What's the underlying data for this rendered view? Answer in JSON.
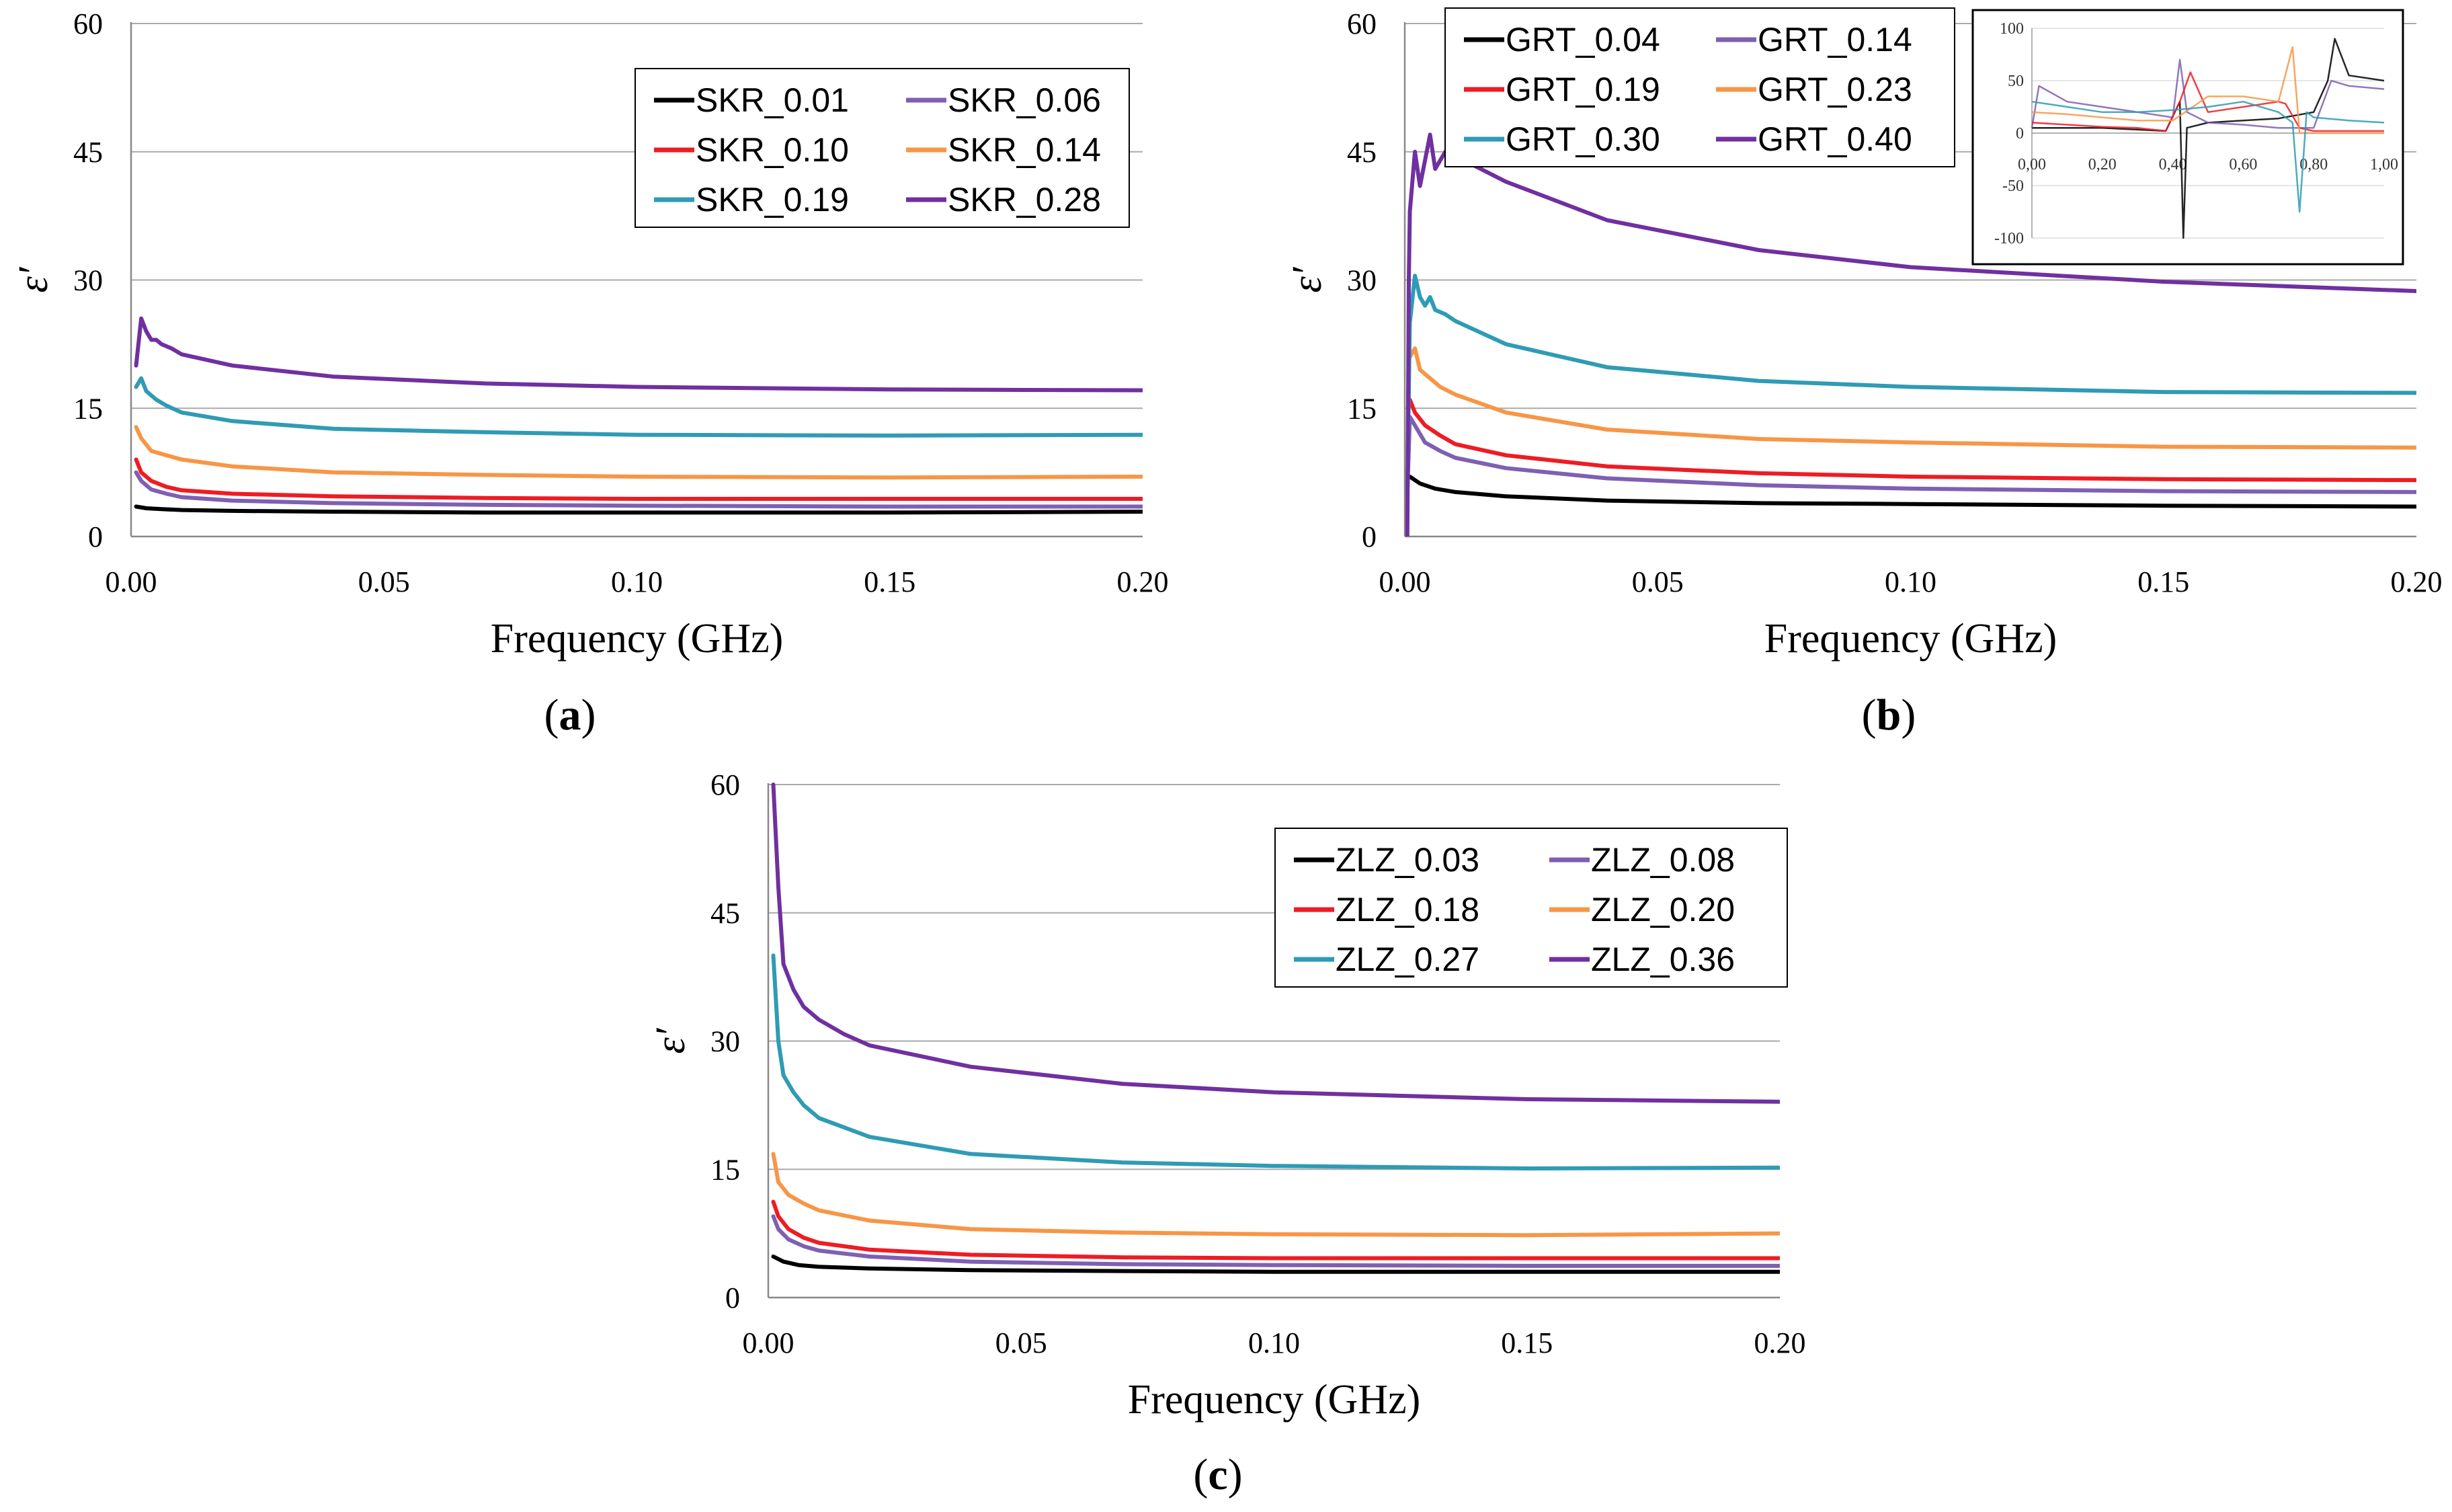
{
  "figure_labels": {
    "a_prefix": "(",
    "a_letter": "a",
    "a_suffix": ")",
    "b_prefix": "(",
    "b_letter": "b",
    "b_suffix": ")",
    "c_prefix": "(",
    "c_letter": "c",
    "c_suffix": ")"
  },
  "colors": {
    "black": "#000000",
    "purple_light": "#7f5fb2",
    "red": "#ee1c24",
    "orange": "#f79646",
    "teal": "#2f9bb4",
    "purple_dark": "#7030a0"
  },
  "chart_data": [
    {
      "id": "a",
      "type": "line",
      "panel_label": "a",
      "xlabel": "Frequency (GHz)",
      "ylabel": "ε′",
      "xlim": [
        0,
        0.2
      ],
      "ylim": [
        0,
        60
      ],
      "x_ticks": [
        0,
        0.05,
        0.1,
        0.15,
        0.2
      ],
      "x_tick_labels": [
        "0.00",
        "0.05",
        "0.10",
        "0.15",
        "0.20"
      ],
      "y_ticks": [
        0,
        15,
        30,
        45,
        60
      ],
      "y_tick_labels": [
        "0",
        "15",
        "30",
        "45",
        "60"
      ],
      "grid": true,
      "legend_position": "top-right",
      "series": [
        {
          "name": "SKR_0.01",
          "color": "#000000",
          "x": [
            0.001,
            0.003,
            0.006,
            0.01,
            0.02,
            0.04,
            0.07,
            0.1,
            0.15,
            0.2
          ],
          "values": [
            3.5,
            3.3,
            3.2,
            3.1,
            3.0,
            2.9,
            2.8,
            2.8,
            2.8,
            2.9
          ]
        },
        {
          "name": "SKR_0.06",
          "color": "#7f5fb2",
          "x": [
            0.001,
            0.002,
            0.004,
            0.007,
            0.01,
            0.02,
            0.04,
            0.07,
            0.1,
            0.15,
            0.2
          ],
          "values": [
            7.5,
            6.5,
            5.5,
            5.0,
            4.6,
            4.2,
            3.9,
            3.7,
            3.6,
            3.5,
            3.5
          ]
        },
        {
          "name": "SKR_0.10",
          "color": "#ee1c24",
          "x": [
            0.001,
            0.002,
            0.004,
            0.007,
            0.01,
            0.02,
            0.04,
            0.07,
            0.1,
            0.15,
            0.2
          ],
          "values": [
            9.0,
            7.5,
            6.5,
            5.8,
            5.4,
            5.0,
            4.7,
            4.5,
            4.4,
            4.4,
            4.4
          ]
        },
        {
          "name": "SKR_0.14",
          "color": "#f79646",
          "x": [
            0.001,
            0.002,
            0.004,
            0.007,
            0.01,
            0.02,
            0.04,
            0.07,
            0.1,
            0.15,
            0.2
          ],
          "values": [
            12.8,
            11.5,
            10.0,
            9.5,
            9.0,
            8.2,
            7.5,
            7.2,
            7.0,
            6.9,
            7.0
          ]
        },
        {
          "name": "SKR_0.19",
          "color": "#2f9bb4",
          "x": [
            0.001,
            0.002,
            0.003,
            0.004,
            0.005,
            0.007,
            0.01,
            0.02,
            0.04,
            0.07,
            0.1,
            0.15,
            0.2
          ],
          "values": [
            17.5,
            18.5,
            17.0,
            16.5,
            16.0,
            15.3,
            14.5,
            13.5,
            12.6,
            12.2,
            11.9,
            11.8,
            11.9
          ]
        },
        {
          "name": "SKR_0.28",
          "color": "#7030a0",
          "x": [
            0.001,
            0.002,
            0.003,
            0.004,
            0.005,
            0.006,
            0.008,
            0.01,
            0.02,
            0.04,
            0.07,
            0.1,
            0.15,
            0.2
          ],
          "values": [
            20.0,
            25.5,
            24.0,
            23.0,
            23.0,
            22.5,
            22.0,
            21.3,
            20.0,
            18.7,
            17.9,
            17.5,
            17.2,
            17.1
          ]
        }
      ]
    },
    {
      "id": "b",
      "type": "line",
      "panel_label": "b",
      "xlabel": "Frequency (GHz)",
      "ylabel": "ε′",
      "xlim": [
        0,
        0.2
      ],
      "ylim": [
        0,
        60
      ],
      "x_ticks": [
        0,
        0.05,
        0.1,
        0.15,
        0.2
      ],
      "x_tick_labels": [
        "0.00",
        "0.05",
        "0.10",
        "0.15",
        "0.20"
      ],
      "y_ticks": [
        0,
        15,
        30,
        45,
        60
      ],
      "y_tick_labels": [
        "0",
        "15",
        "30",
        "45",
        "60"
      ],
      "grid": true,
      "legend_position": "top-left",
      "series": [
        {
          "name": "GRT_0.04",
          "color": "#000000",
          "x": [
            0.001,
            0.003,
            0.006,
            0.01,
            0.02,
            0.04,
            0.07,
            0.1,
            0.15,
            0.2
          ],
          "values": [
            7.0,
            6.2,
            5.6,
            5.2,
            4.7,
            4.2,
            3.9,
            3.8,
            3.6,
            3.5
          ]
        },
        {
          "name": "GRT_0.14",
          "color": "#7f5fb2",
          "x": [
            0.0005,
            0.001,
            0.002,
            0.004,
            0.007,
            0.01,
            0.02,
            0.04,
            0.07,
            0.1,
            0.15,
            0.2
          ],
          "values": [
            5.0,
            14.0,
            13.0,
            11.0,
            10.0,
            9.2,
            8.0,
            6.8,
            6.0,
            5.6,
            5.3,
            5.2
          ]
        },
        {
          "name": "GRT_0.19",
          "color": "#ee1c24",
          "x": [
            0.001,
            0.002,
            0.004,
            0.007,
            0.01,
            0.02,
            0.04,
            0.07,
            0.1,
            0.15,
            0.2
          ],
          "values": [
            16.0,
            14.5,
            13.0,
            11.8,
            10.8,
            9.5,
            8.2,
            7.4,
            7.0,
            6.7,
            6.6
          ]
        },
        {
          "name": "GRT_0.23",
          "color": "#f79646",
          "x": [
            0.001,
            0.002,
            0.003,
            0.005,
            0.007,
            0.01,
            0.02,
            0.04,
            0.07,
            0.1,
            0.15,
            0.2
          ],
          "values": [
            21.0,
            22.0,
            19.5,
            18.5,
            17.5,
            16.6,
            14.5,
            12.5,
            11.4,
            11.0,
            10.5,
            10.4
          ]
        },
        {
          "name": "GRT_0.30",
          "color": "#2f9bb4",
          "x": [
            0.0005,
            0.001,
            0.002,
            0.003,
            0.004,
            0.005,
            0.006,
            0.008,
            0.01,
            0.02,
            0.04,
            0.07,
            0.1,
            0.15,
            0.2
          ],
          "values": [
            5.0,
            25.0,
            30.5,
            28.0,
            27.0,
            28.0,
            26.5,
            26.0,
            25.2,
            22.5,
            19.8,
            18.2,
            17.5,
            16.9,
            16.8
          ]
        },
        {
          "name": "GRT_0.40",
          "color": "#7030a0",
          "x": [
            0.0005,
            0.0008,
            0.001,
            0.002,
            0.003,
            0.004,
            0.005,
            0.006,
            0.007,
            0.008,
            0.01,
            0.02,
            0.04,
            0.07,
            0.1,
            0.15,
            0.2
          ],
          "values": [
            0,
            30.0,
            38.0,
            45.0,
            41.0,
            44.0,
            47.0,
            43.0,
            44.0,
            45.0,
            44.5,
            41.5,
            37.0,
            33.5,
            31.5,
            29.8,
            28.7
          ]
        }
      ],
      "inset": {
        "type": "line",
        "xlim": [
          0,
          1
        ],
        "ylim": [
          -100,
          100
        ],
        "x_ticks": [
          0,
          0.2,
          0.4,
          0.6,
          0.8,
          1.0
        ],
        "x_tick_labels": [
          "0,00",
          "0,20",
          "0,40",
          "0,60",
          "0,80",
          "1,00"
        ],
        "y_ticks": [
          -100,
          -50,
          0,
          50,
          100
        ],
        "y_tick_labels": [
          "-100",
          "-50",
          "0",
          "50",
          "100"
        ],
        "series": [
          {
            "color": "#000000",
            "x": [
              0,
              0.2,
              0.38,
              0.42,
              0.43,
              0.44,
              0.5,
              0.6,
              0.7,
              0.8,
              0.84,
              0.86,
              0.9,
              1.0
            ],
            "values": [
              5,
              5,
              2,
              30,
              -100,
              5,
              10,
              12,
              14,
              20,
              50,
              90,
              55,
              50
            ]
          },
          {
            "color": "#7f5fb2",
            "x": [
              0,
              0.02,
              0.1,
              0.2,
              0.3,
              0.4,
              0.42,
              0.44,
              0.5,
              0.6,
              0.7,
              0.8,
              0.85,
              0.9,
              1.0
            ],
            "values": [
              5,
              45,
              30,
              25,
              20,
              15,
              70,
              20,
              10,
              8,
              5,
              5,
              50,
              45,
              42
            ]
          },
          {
            "color": "#ee1c24",
            "x": [
              0,
              0.1,
              0.2,
              0.3,
              0.38,
              0.42,
              0.45,
              0.5,
              0.6,
              0.7,
              0.72,
              0.76,
              0.8,
              1.0
            ],
            "values": [
              10,
              8,
              6,
              5,
              2,
              30,
              58,
              20,
              25,
              30,
              28,
              5,
              2,
              2
            ]
          },
          {
            "color": "#f79646",
            "x": [
              0,
              0.1,
              0.2,
              0.3,
              0.4,
              0.5,
              0.6,
              0.7,
              0.74,
              0.76,
              0.8,
              0.9,
              1.0
            ],
            "values": [
              20,
              18,
              15,
              12,
              12,
              35,
              35,
              30,
              82,
              0,
              0,
              0,
              0
            ]
          },
          {
            "color": "#2f9bb4",
            "x": [
              0,
              0.1,
              0.2,
              0.3,
              0.4,
              0.5,
              0.6,
              0.7,
              0.74,
              0.76,
              0.78,
              0.8,
              0.9,
              1.0
            ],
            "values": [
              30,
              25,
              20,
              20,
              22,
              25,
              30,
              20,
              10,
              -75,
              20,
              15,
              12,
              10
            ]
          }
        ]
      }
    },
    {
      "id": "c",
      "type": "line",
      "panel_label": "c",
      "xlabel": "Frequency (GHz)",
      "ylabel": "ε′",
      "xlim": [
        0,
        0.2
      ],
      "ylim": [
        0,
        60
      ],
      "x_ticks": [
        0,
        0.05,
        0.1,
        0.15,
        0.2
      ],
      "x_tick_labels": [
        "0.00",
        "0.05",
        "0.10",
        "0.15",
        "0.20"
      ],
      "y_ticks": [
        0,
        15,
        30,
        45,
        60
      ],
      "y_tick_labels": [
        "0",
        "15",
        "30",
        "45",
        "60"
      ],
      "grid": true,
      "legend_position": "top-right",
      "series": [
        {
          "name": "ZLZ_0.03",
          "color": "#000000",
          "x": [
            0.001,
            0.003,
            0.006,
            0.01,
            0.02,
            0.04,
            0.07,
            0.1,
            0.15,
            0.2
          ],
          "values": [
            4.8,
            4.2,
            3.8,
            3.6,
            3.4,
            3.2,
            3.1,
            3.0,
            3.0,
            3.0
          ]
        },
        {
          "name": "ZLZ_0.08",
          "color": "#7f5fb2",
          "x": [
            0.001,
            0.002,
            0.004,
            0.007,
            0.01,
            0.02,
            0.04,
            0.07,
            0.1,
            0.15,
            0.2
          ],
          "values": [
            9.5,
            8.0,
            6.8,
            6.0,
            5.5,
            4.8,
            4.2,
            3.9,
            3.8,
            3.7,
            3.7
          ]
        },
        {
          "name": "ZLZ_0.18",
          "color": "#ee1c24",
          "x": [
            0.001,
            0.002,
            0.004,
            0.007,
            0.01,
            0.02,
            0.04,
            0.07,
            0.1,
            0.15,
            0.2
          ],
          "values": [
            11.2,
            9.5,
            8.0,
            7.0,
            6.4,
            5.6,
            5.0,
            4.7,
            4.6,
            4.6,
            4.6
          ]
        },
        {
          "name": "ZLZ_0.20",
          "color": "#f79646",
          "x": [
            0.001,
            0.002,
            0.004,
            0.007,
            0.01,
            0.02,
            0.04,
            0.07,
            0.1,
            0.15,
            0.2
          ],
          "values": [
            16.8,
            13.5,
            12.0,
            11.0,
            10.2,
            9.0,
            8.0,
            7.6,
            7.4,
            7.3,
            7.5
          ]
        },
        {
          "name": "ZLZ_0.27",
          "color": "#2f9bb4",
          "x": [
            0.001,
            0.002,
            0.003,
            0.005,
            0.007,
            0.01,
            0.02,
            0.04,
            0.07,
            0.1,
            0.15,
            0.2
          ],
          "values": [
            40.0,
            30.0,
            26.0,
            24.0,
            22.5,
            21.0,
            18.8,
            16.8,
            15.8,
            15.4,
            15.1,
            15.2
          ]
        },
        {
          "name": "ZLZ_0.36",
          "color": "#7030a0",
          "x": [
            0.001,
            0.002,
            0.003,
            0.005,
            0.007,
            0.01,
            0.015,
            0.02,
            0.04,
            0.07,
            0.1,
            0.15,
            0.2
          ],
          "values": [
            60.0,
            48.0,
            39.0,
            36.0,
            34.0,
            32.5,
            30.8,
            29.5,
            27.0,
            25.0,
            24.0,
            23.2,
            22.9
          ]
        }
      ]
    }
  ]
}
